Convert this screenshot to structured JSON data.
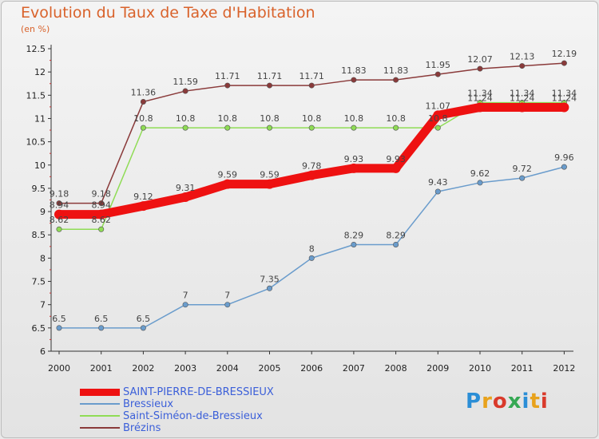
{
  "header": {
    "title": "Evolution du Taux de Taxe d'Habitation",
    "unit": "(en %)"
  },
  "logo": {
    "text": "Proxiti"
  },
  "chart_data": {
    "type": "line",
    "title": "Evolution du Taux de Taxe d'Habitation",
    "ylabel": "(en %)",
    "x": [
      "2000",
      "2001",
      "2002",
      "2003",
      "2004",
      "2005",
      "2006",
      "2007",
      "2008",
      "2009",
      "2010",
      "2011",
      "2012"
    ],
    "ylim": [
      6,
      12.5
    ],
    "yticks": [
      "6",
      "6.5",
      "7",
      "7.5",
      "8",
      "8.5",
      "9",
      "9.5",
      "10",
      "10.5",
      "11",
      "11.5",
      "12",
      "12.5"
    ],
    "grid": false,
    "legend_position": "bottom",
    "series": [
      {
        "name": "SAINT-PIERRE-DE-BRESSIEUX",
        "color": "#ee1111",
        "values": [
          8.94,
          8.94,
          9.12,
          9.31,
          9.59,
          9.59,
          9.78,
          9.93,
          9.93,
          11.07,
          11.24,
          11.24,
          11.24
        ],
        "labels": [
          "8.94",
          "8.94",
          "9.12",
          "9.31",
          "9.59",
          "9.59",
          "9.78",
          "9.93",
          "9.93",
          "11.07",
          "11.24",
          "11.24",
          "11.24"
        ]
      },
      {
        "name": "Bressieux",
        "color": "#6a9ccc",
        "values": [
          6.5,
          6.5,
          6.5,
          7,
          7,
          7.35,
          8,
          8.29,
          8.29,
          9.43,
          9.62,
          9.72,
          9.96
        ],
        "labels": [
          "6.5",
          "6.5",
          "6.5",
          "7",
          "7",
          "7.35",
          "8",
          "8.29",
          "8.29",
          "9.43",
          "9.62",
          "9.72",
          "9.96"
        ]
      },
      {
        "name": "Saint-Siméon-de-Bressieux",
        "color": "#8fdc55",
        "values": [
          8.62,
          8.62,
          10.8,
          10.8,
          10.8,
          10.8,
          10.8,
          10.8,
          10.8,
          10.8,
          11.34,
          11.34,
          11.34
        ],
        "labels": [
          "8.62",
          "8.62",
          "10.8",
          "10.8",
          "10.8",
          "10.8",
          "10.8",
          "10.8",
          "10.8",
          "10.8",
          "11.34",
          "11.34",
          "11.34"
        ]
      },
      {
        "name": "Brézins",
        "color": "#8a3a3a",
        "values": [
          9.18,
          9.18,
          11.36,
          11.59,
          11.71,
          11.71,
          11.71,
          11.83,
          11.83,
          11.95,
          12.07,
          12.13,
          12.19
        ],
        "labels": [
          "9.18",
          "9.18",
          "11.36",
          "11.59",
          "11.71",
          "11.71",
          "11.71",
          "11.83",
          "11.83",
          "11.95",
          "12.07",
          "12.13",
          "12.19"
        ]
      }
    ]
  }
}
